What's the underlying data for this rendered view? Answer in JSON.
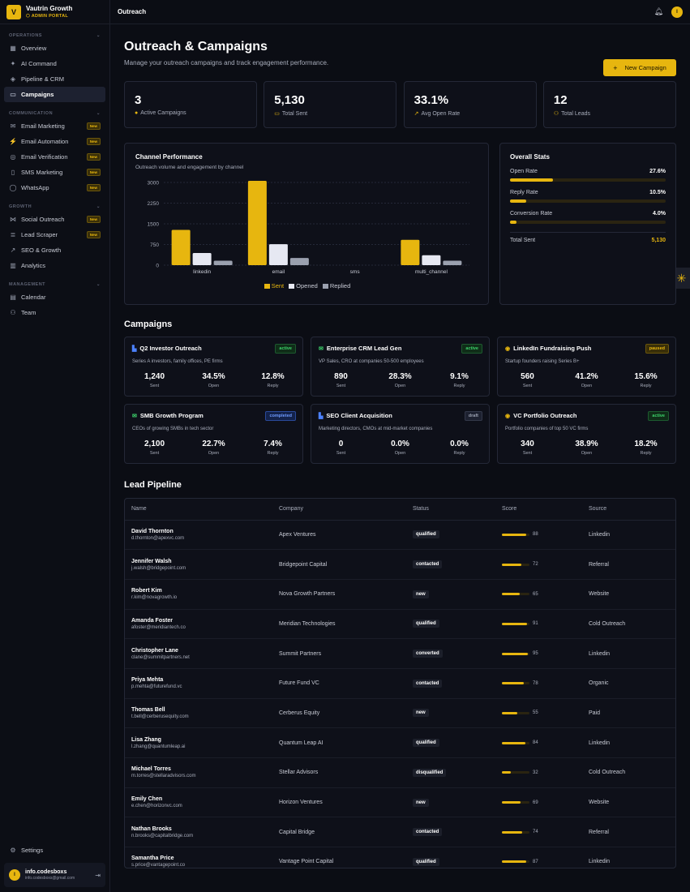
{
  "brand": {
    "logo": "V",
    "name": "Vautrin Growth",
    "subtitle": "ADMIN PORTAL"
  },
  "sidebar": {
    "sections": [
      {
        "title": "OPERATIONS",
        "items": [
          {
            "label": "Overview",
            "icon": "grid-icon"
          },
          {
            "label": "AI Command",
            "icon": "sparkle-icon"
          },
          {
            "label": "Pipeline & CRM",
            "icon": "layers-icon"
          },
          {
            "label": "Campaigns",
            "icon": "message-icon",
            "active": true
          }
        ]
      },
      {
        "title": "COMMUNICATION",
        "items": [
          {
            "label": "Email Marketing",
            "icon": "mail-icon",
            "badge": "New"
          },
          {
            "label": "Email Automation",
            "icon": "bolt-icon",
            "badge": "New"
          },
          {
            "label": "Email Verification",
            "icon": "check-circle-icon",
            "badge": "New"
          },
          {
            "label": "SMS Marketing",
            "icon": "phone-icon",
            "badge": "New"
          },
          {
            "label": "WhatsApp",
            "icon": "chat-icon",
            "badge": "New"
          }
        ]
      },
      {
        "title": "GROWTH",
        "items": [
          {
            "label": "Social Outreach",
            "icon": "share-icon",
            "badge": "New"
          },
          {
            "label": "Lead Scraper",
            "icon": "database-icon",
            "badge": "New"
          },
          {
            "label": "SEO & Growth",
            "icon": "trend-icon"
          },
          {
            "label": "Analytics",
            "icon": "chart-icon"
          }
        ]
      },
      {
        "title": "MANAGEMENT",
        "items": [
          {
            "label": "Calendar",
            "icon": "calendar-icon"
          },
          {
            "label": "Team",
            "icon": "users-icon"
          }
        ]
      }
    ],
    "settings": "Settings",
    "user": {
      "avatar": "I",
      "name": "info.codesboxs",
      "email": "info.codesboxs@gmail.com"
    }
  },
  "topbar": {
    "title": "Outreach",
    "avatar": "I"
  },
  "header": {
    "title": "Outreach & Campaigns",
    "subtitle": "Manage your outreach campaigns and track engagement performance.",
    "new_button": "New Campaign"
  },
  "stats": [
    {
      "value": "3",
      "label": "Active Campaigns",
      "icon": "dot-icon"
    },
    {
      "value": "5,130",
      "label": "Total Sent",
      "icon": "message-icon"
    },
    {
      "value": "33.1%",
      "label": "Avg Open Rate",
      "icon": "trend-icon"
    },
    {
      "value": "12",
      "label": "Total Leads",
      "icon": "users-icon"
    }
  ],
  "channel_performance": {
    "title": "Channel Performance",
    "subtitle": "Outreach volume and engagement by channel"
  },
  "chart_data": {
    "type": "bar",
    "categories": [
      "linkedin",
      "email",
      "sms",
      "multi_channel"
    ],
    "series": [
      {
        "name": "Sent",
        "values": [
          1280,
          3060,
          0,
          920
        ],
        "color": "#e7b60f"
      },
      {
        "name": "Opened",
        "values": [
          440,
          760,
          0,
          360
        ],
        "color": "#e6e8f2"
      },
      {
        "name": "Replied",
        "values": [
          160,
          260,
          0,
          160
        ],
        "color": "#9aa0ae"
      }
    ],
    "yticks": [
      "3000",
      "2250",
      "1500",
      "750",
      "0"
    ],
    "ylim": [
      0,
      3000
    ],
    "grid": true,
    "legend": "bottom"
  },
  "overall_stats": {
    "title": "Overall Stats",
    "rows": [
      {
        "label": "Open Rate",
        "value": "27.6%",
        "fraction": 0.276
      },
      {
        "label": "Reply Rate",
        "value": "10.5%",
        "fraction": 0.105
      },
      {
        "label": "Conversion Rate",
        "value": "4.0%",
        "fraction": 0.04
      }
    ],
    "total_label": "Total Sent",
    "total_value": "5,130"
  },
  "campaigns_title": "Campaigns",
  "campaigns": [
    {
      "name": "Q2 Investor Outreach",
      "icon": "linkedin-icon",
      "status": "active",
      "desc": "Series A investors, family offices, PE firms",
      "sent": "1,240",
      "open": "34.5%",
      "reply": "12.8%"
    },
    {
      "name": "Enterprise CRM Lead Gen",
      "icon": "mail-icon",
      "status": "active",
      "desc": "VP Sales, CRO at companies 50-500 employees",
      "sent": "890",
      "open": "28.3%",
      "reply": "9.1%"
    },
    {
      "name": "LinkedIn Fundraising Push",
      "icon": "broadcast-icon",
      "status": "paused",
      "desc": "Startup founders raising Series B+",
      "sent": "560",
      "open": "41.2%",
      "reply": "15.6%"
    },
    {
      "name": "SMB Growth Program",
      "icon": "mail-icon",
      "status": "completed",
      "desc": "CEOs of growing SMBs in tech sector",
      "sent": "2,100",
      "open": "22.7%",
      "reply": "7.4%"
    },
    {
      "name": "SEO Client Acquisition",
      "icon": "linkedin-icon",
      "status": "draft",
      "desc": "Marketing directors, CMOs at mid-market companies",
      "sent": "0",
      "open": "0.0%",
      "reply": "0.0%"
    },
    {
      "name": "VC Portfolio Outreach",
      "icon": "broadcast-icon",
      "status": "active",
      "desc": "Portfolio companies of top 50 VC firms",
      "sent": "340",
      "open": "38.9%",
      "reply": "18.2%"
    }
  ],
  "metric_labels": {
    "sent": "Sent",
    "open": "Open",
    "reply": "Reply"
  },
  "pipeline_title": "Lead Pipeline",
  "pipeline_columns": [
    "Name",
    "Company",
    "Status",
    "Score",
    "Source"
  ],
  "leads": [
    {
      "name": "David Thornton",
      "email": "d.thornton@apexvc.com",
      "company": "Apex Ventures",
      "status": "qualified",
      "score": 88,
      "source": "Linkedin"
    },
    {
      "name": "Jennifer Walsh",
      "email": "j.walsh@bridgepoint.com",
      "company": "Bridgepoint Capital",
      "status": "contacted",
      "score": 72,
      "source": "Referral"
    },
    {
      "name": "Robert Kim",
      "email": "r.kim@novagrowth.io",
      "company": "Nova Growth Partners",
      "status": "new",
      "score": 65,
      "source": "Website"
    },
    {
      "name": "Amanda Foster",
      "email": "afoster@meridiantech.co",
      "company": "Meridian Technologies",
      "status": "qualified",
      "score": 91,
      "source": "Cold Outreach"
    },
    {
      "name": "Christopher Lane",
      "email": "clane@summitpartners.net",
      "company": "Summit Partners",
      "status": "converted",
      "score": 95,
      "source": "Linkedin"
    },
    {
      "name": "Priya Mehta",
      "email": "p.mehta@futurefund.vc",
      "company": "Future Fund VC",
      "status": "contacted",
      "score": 78,
      "source": "Organic"
    },
    {
      "name": "Thomas Bell",
      "email": "t.bell@cerberusequity.com",
      "company": "Cerberus Equity",
      "status": "new",
      "score": 55,
      "source": "Paid"
    },
    {
      "name": "Lisa Zhang",
      "email": "l.zhang@quantumleap.ai",
      "company": "Quantum Leap AI",
      "status": "qualified",
      "score": 84,
      "source": "Linkedin"
    },
    {
      "name": "Michael Torres",
      "email": "m.torres@stellaradvisors.com",
      "company": "Stellar Advisors",
      "status": "disqualified",
      "score": 32,
      "source": "Cold Outreach"
    },
    {
      "name": "Emily Chen",
      "email": "e.chen@horizonvc.com",
      "company": "Horizon Ventures",
      "status": "new",
      "score": 69,
      "source": "Website"
    },
    {
      "name": "Nathan Brooks",
      "email": "n.brooks@capitalbridge.com",
      "company": "Capital Bridge",
      "status": "contacted",
      "score": 74,
      "source": "Referral"
    },
    {
      "name": "Samantha Price",
      "email": "s.price@vantagepoint.co",
      "company": "Vantage Point Capital",
      "status": "qualified",
      "score": 87,
      "source": "Linkedin"
    }
  ]
}
